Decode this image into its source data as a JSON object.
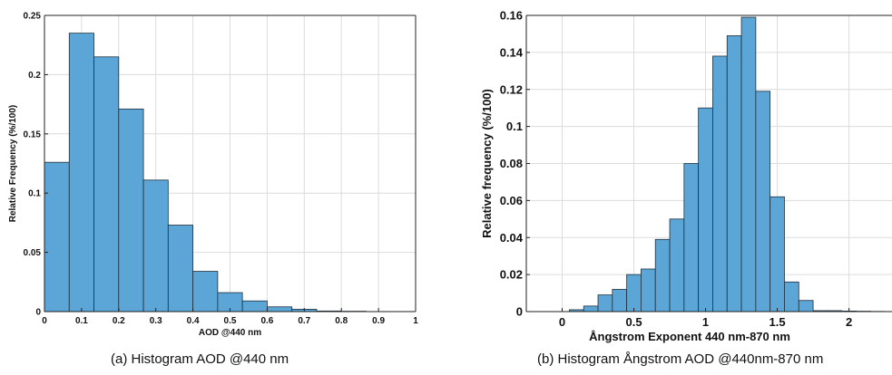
{
  "chart_data": [
    {
      "type": "bar",
      "subtype": "histogram",
      "caption": "(a) Histogram AOD @440 nm",
      "xlabel": "AOD @440 nm",
      "ylabel": "Relative Frequency (%/100)",
      "xlim": [
        0,
        1
      ],
      "ylim": [
        0,
        0.25
      ],
      "xticks": [
        "0",
        "0.1",
        "0.2",
        "0.3",
        "0.4",
        "0.5",
        "0.6",
        "0.7",
        "0.8",
        "0.9",
        "1"
      ],
      "yticks": [
        "0",
        "0.05",
        "0.1",
        "0.15",
        "0.2",
        "0.25"
      ],
      "grid": true,
      "bar_color": "#5ba6d6",
      "bin_edges": [
        0,
        0.0667,
        0.1333,
        0.2,
        0.2667,
        0.3333,
        0.4,
        0.4667,
        0.5333,
        0.6,
        0.6667,
        0.7333,
        0.8,
        0.8667
      ],
      "values": [
        0.126,
        0.235,
        0.215,
        0.171,
        0.111,
        0.073,
        0.034,
        0.016,
        0.009,
        0.004,
        0.002,
        0.0005,
        0.0003
      ]
    },
    {
      "type": "bar",
      "subtype": "histogram",
      "caption": "(b) Histogram Ångstrom AOD @440nm-870 nm",
      "xlabel": "Ångstrom Exponent 440 nm-870 nm",
      "ylabel": "Relative frequency (%/100)",
      "xlim": [
        -0.25,
        2.3
      ],
      "ylim": [
        0,
        0.16
      ],
      "xticks": [
        "0",
        "0.5",
        "1",
        "1.5",
        "2"
      ],
      "yticks": [
        "0",
        "0.02",
        "0.04",
        "0.06",
        "0.08",
        "0.1",
        "0.12",
        "0.14",
        "0.16"
      ],
      "grid": true,
      "bar_color": "#5ba6d6",
      "bin_edges": [
        0.05,
        0.15,
        0.25,
        0.35,
        0.45,
        0.55,
        0.65,
        0.75,
        0.85,
        0.95,
        1.05,
        1.15,
        1.25,
        1.35,
        1.45,
        1.55,
        1.65,
        1.75,
        1.85,
        1.95,
        2.05,
        2.15,
        2.25
      ],
      "values": [
        0.001,
        0.003,
        0.009,
        0.012,
        0.02,
        0.023,
        0.039,
        0.05,
        0.08,
        0.11,
        0.138,
        0.149,
        0.159,
        0.119,
        0.062,
        0.016,
        0.006,
        0.0005,
        0.0005,
        0.0003,
        0.0002,
        0.0001
      ]
    }
  ]
}
